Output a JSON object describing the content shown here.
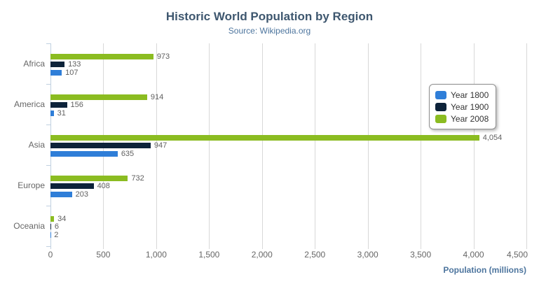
{
  "header": {
    "title": "Historic World Population by Region",
    "subtitle": "Source: Wikipedia.org"
  },
  "toolbar": {
    "export_menu_icon": "hamburger-icon"
  },
  "chart_data": {
    "type": "bar",
    "orientation": "horizontal",
    "title": "Historic World Population by Region",
    "subtitle": "Source: Wikipedia.org",
    "categories": [
      "Africa",
      "America",
      "Asia",
      "Europe",
      "Oceania"
    ],
    "series": [
      {
        "name": "Year 1800",
        "color": "#2f7ed8",
        "values": [
          107,
          31,
          635,
          203,
          2
        ]
      },
      {
        "name": "Year 1900",
        "color": "#0d233a",
        "values": [
          133,
          156,
          947,
          408,
          6
        ]
      },
      {
        "name": "Year 2008",
        "color": "#8bbc21",
        "values": [
          973,
          914,
          4054,
          732,
          34
        ]
      }
    ],
    "bar_order_top_to_bottom": [
      "Year 2008",
      "Year 1900",
      "Year 1800"
    ],
    "data_labels_shown": true,
    "xlabel": "Population (millions)",
    "x_ticks": [
      0,
      500,
      1000,
      1500,
      2000,
      2500,
      3000,
      3500,
      4000,
      4500
    ],
    "x_tick_labels": [
      "0",
      "500",
      "1,000",
      "1,500",
      "2,000",
      "2,500",
      "3,000",
      "3,500",
      "4,000",
      "4,500"
    ],
    "xlim": [
      0,
      4500
    ],
    "grid": true,
    "legend_position": "right-upper"
  },
  "colors": {
    "title_text": "#3e576f",
    "subtitle_text": "#4d759e",
    "axis_title_text": "#4d759e",
    "tick_label_text": "#666666",
    "category_label_text": "#666666",
    "data_label_text": "#606060",
    "grid_line": "#d8d8d8",
    "axis_line": "#c0d0e0",
    "legend_border": "#909090",
    "legend_text": "#333333",
    "menu_icon": "#666666",
    "background": "#ffffff"
  }
}
